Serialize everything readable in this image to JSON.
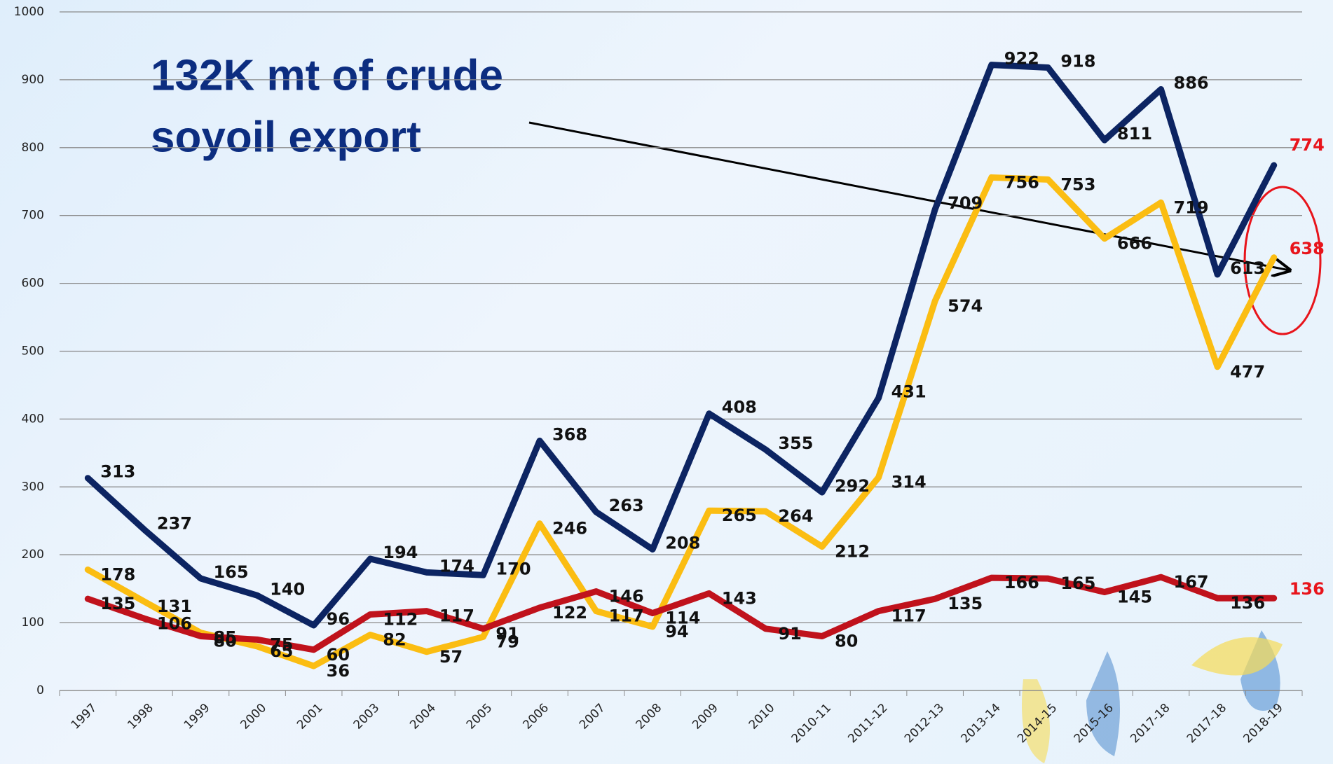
{
  "chart_data": {
    "type": "line",
    "annotation": [
      "132K mt of crude",
      "soyoil export"
    ],
    "categories": [
      "1997",
      "1998",
      "1999",
      "2000",
      "2001",
      "2003",
      "2004",
      "2005",
      "2006",
      "2007",
      "2008",
      "2009",
      "2010",
      "2010-11",
      "2011-12",
      "2012-13",
      "2013-14",
      "2014-15",
      "2015-16",
      "2017-18",
      "2017-18",
      "2018-19"
    ],
    "series": [
      {
        "color": "#0c2462",
        "values": [
          313,
          237,
          165,
          140,
          96,
          194,
          174,
          170,
          368,
          263,
          208,
          408,
          355,
          292,
          431,
          709,
          922,
          918,
          811,
          886,
          613,
          774
        ]
      },
      {
        "color": "#fbbd12",
        "values": [
          178,
          131,
          85,
          65,
          36,
          82,
          57,
          79,
          246,
          117,
          94,
          265,
          264,
          212,
          314,
          574,
          756,
          753,
          666,
          719,
          477,
          638
        ]
      },
      {
        "color": "#c0121c",
        "values": [
          135,
          106,
          80,
          75,
          60,
          112,
          117,
          91,
          122,
          146,
          114,
          143,
          91,
          80,
          117,
          135,
          166,
          165,
          145,
          167,
          136,
          136
        ]
      }
    ],
    "last_label_color": "#e8141b",
    "ylim": [
      0,
      1000
    ],
    "yticks": [
      0,
      100,
      200,
      300,
      400,
      500,
      600,
      700,
      800,
      900,
      1000
    ],
    "grid": true
  }
}
